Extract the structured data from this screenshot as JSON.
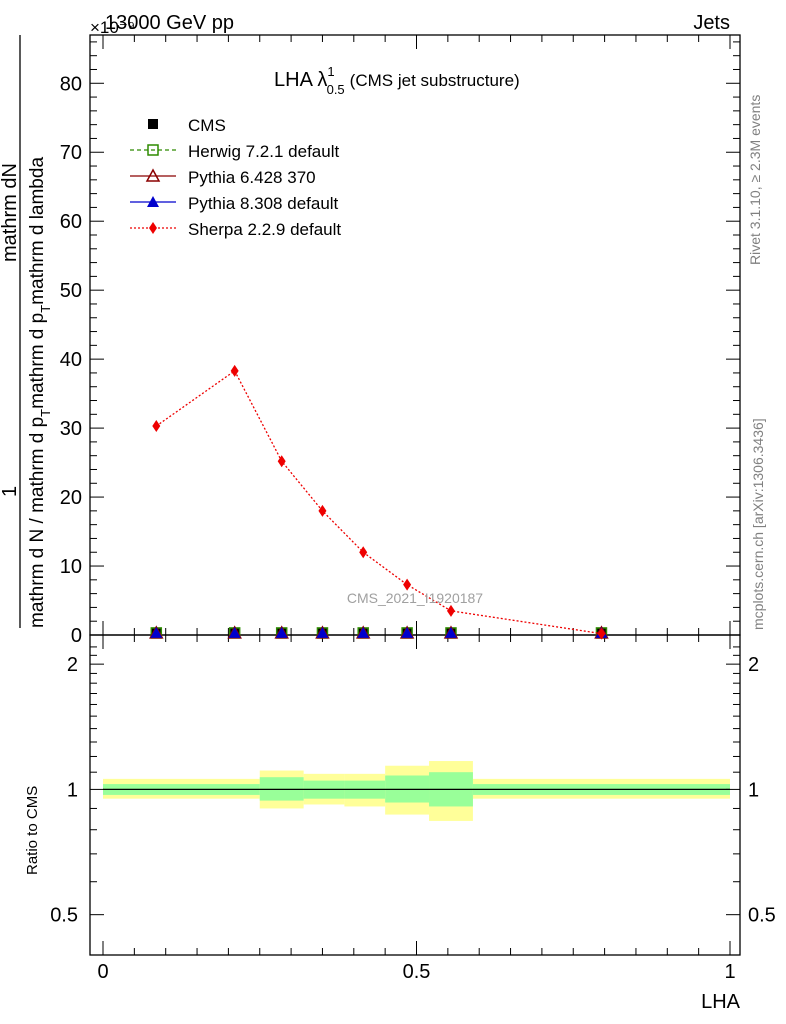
{
  "header": {
    "energy": "13000 GeV pp",
    "process": "Jets",
    "exponent": "×10⁻⁹"
  },
  "side_text": {
    "rivet": "Rivet 3.1.10, ≥ 2.3M events",
    "mcplots": "mcplots.cern.ch [arXiv:1306.3436]"
  },
  "watermark": "CMS_2021_I1920187",
  "chart_data": [
    {
      "type": "line",
      "title": "LHA λ",
      "title_sup": "1",
      "title_sub": "0.5",
      "title_suffix": "(CMS jet substructure)",
      "ylabel_num": "1",
      "ylabel_num_tail": "mathrm dN",
      "ylabel_den": "mathrm d N / mathrm d p",
      "ylabel_den_tail": "mathrm d p",
      "ylabel_den_end": "mathrm d lambda",
      "ylabel_sub": "T",
      "xlim": [
        0,
        1
      ],
      "ylim": [
        0,
        87
      ],
      "y_ticks": [
        0,
        10,
        20,
        30,
        40,
        50,
        60,
        70,
        80
      ],
      "y_tick_labels": [
        "0",
        "10",
        "20",
        "30",
        "40",
        "50",
        "60",
        "70",
        "80"
      ],
      "legend_position": "top-left",
      "series": [
        {
          "name": "CMS",
          "style": "data",
          "color": "#000000",
          "x": [
            0.085,
            0.21,
            0.285,
            0.35,
            0.415,
            0.485,
            0.555,
            0.795
          ],
          "y": [
            0.3,
            0.3,
            0.3,
            0.3,
            0.3,
            0.3,
            0.3,
            0.3
          ]
        },
        {
          "name": "Herwig 7.2.1 default",
          "style": "open-square-dashed",
          "color": "#2e8b00",
          "x": [
            0.085,
            0.21,
            0.285,
            0.35,
            0.415,
            0.485,
            0.555,
            0.795
          ],
          "y": [
            0.3,
            0.3,
            0.3,
            0.3,
            0.3,
            0.3,
            0.3,
            0.3
          ]
        },
        {
          "name": "Pythia 6.428 370",
          "style": "open-triangle",
          "color": "#8b0000",
          "x": [
            0.085,
            0.21,
            0.285,
            0.35,
            0.415,
            0.485,
            0.555,
            0.795
          ],
          "y": [
            0.3,
            0.3,
            0.3,
            0.3,
            0.3,
            0.3,
            0.3,
            0.3
          ]
        },
        {
          "name": "Pythia 8.308 default",
          "style": "filled-triangle",
          "color": "#0000cc",
          "x": [
            0.085,
            0.21,
            0.285,
            0.35,
            0.415,
            0.485,
            0.555,
            0.795
          ],
          "y": [
            0.3,
            0.3,
            0.3,
            0.3,
            0.3,
            0.3,
            0.3,
            0.3
          ]
        },
        {
          "name": "Sherpa 2.2.9 default",
          "style": "diamond-dotted",
          "color": "#ee0000",
          "x": [
            0.085,
            0.21,
            0.285,
            0.35,
            0.415,
            0.485,
            0.555,
            0.795
          ],
          "y": [
            30.3,
            38.3,
            25.2,
            18.0,
            12.0,
            7.3,
            3.5,
            0.2
          ]
        }
      ]
    },
    {
      "type": "area",
      "ylabel": "Ratio to CMS",
      "xlabel": "LHA",
      "xlim": [
        0,
        1
      ],
      "ylim": [
        0.4,
        2.35
      ],
      "y_scale": "log",
      "y_ticks": [
        0.5,
        1,
        2
      ],
      "y_tick_labels": [
        "0.5",
        "1",
        "2"
      ],
      "x_ticks": [
        0,
        0.5,
        1
      ],
      "x_tick_labels": [
        "0",
        "0.5",
        "1"
      ],
      "reference_line": 1,
      "bins": [
        0,
        0.25,
        0.32,
        0.385,
        0.45,
        0.52,
        0.59,
        1.0
      ],
      "band_outer": {
        "color": "#ffff99",
        "low": [
          0.95,
          0.9,
          0.92,
          0.91,
          0.87,
          0.84,
          0.95
        ],
        "high": [
          1.06,
          1.11,
          1.09,
          1.09,
          1.14,
          1.17,
          1.06
        ]
      },
      "band_inner": {
        "color": "#99ff99",
        "low": [
          0.97,
          0.94,
          0.95,
          0.95,
          0.93,
          0.91,
          0.97
        ],
        "high": [
          1.03,
          1.07,
          1.05,
          1.05,
          1.08,
          1.1,
          1.03
        ]
      }
    }
  ]
}
